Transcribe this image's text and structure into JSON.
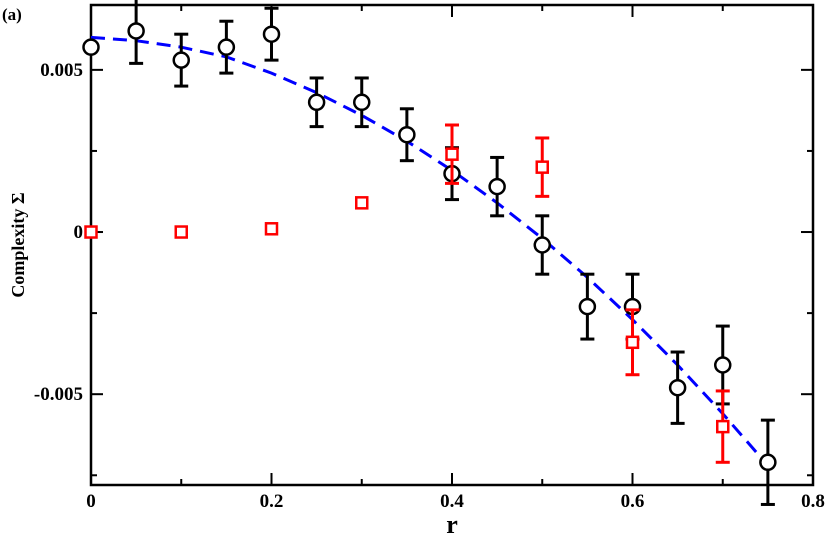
{
  "panel_label": "(a)",
  "chart_data": {
    "type": "scatter",
    "title": "",
    "xlabel": "r",
    "ylabel": "Complexity Σ",
    "xlim": [
      0,
      0.8
    ],
    "ylim": [
      -0.0078,
      0.007
    ],
    "x_ticks": [
      0,
      0.2,
      0.4,
      0.6,
      0.8
    ],
    "x_tick_labels": [
      "0",
      "0.2",
      "0.4",
      "0.6",
      "0.8"
    ],
    "y_ticks": [
      -0.005,
      0,
      0.005
    ],
    "y_tick_labels": [
      "-0.005",
      "0",
      "0.005"
    ],
    "grid": false,
    "legend": "none",
    "series": [
      {
        "marker": "circle",
        "color": "#000000",
        "points": [
          {
            "x": 0.0,
            "y": 0.0057,
            "err": 0.0
          },
          {
            "x": 0.05,
            "y": 0.0062,
            "err": 0.001
          },
          {
            "x": 0.1,
            "y": 0.0053,
            "err": 0.0008
          },
          {
            "x": 0.15,
            "y": 0.0057,
            "err": 0.0008
          },
          {
            "x": 0.2,
            "y": 0.0061,
            "err": 0.0008
          },
          {
            "x": 0.25,
            "y": 0.004,
            "err": 0.00075
          },
          {
            "x": 0.3,
            "y": 0.004,
            "err": 0.00075
          },
          {
            "x": 0.35,
            "y": 0.003,
            "err": 0.0008
          },
          {
            "x": 0.4,
            "y": 0.0018,
            "err": 0.0008
          },
          {
            "x": 0.45,
            "y": 0.0014,
            "err": 0.0009
          },
          {
            "x": 0.5,
            "y": -0.0004,
            "err": 0.0009
          },
          {
            "x": 0.55,
            "y": -0.0023,
            "err": 0.001
          },
          {
            "x": 0.6,
            "y": -0.0023,
            "err": 0.001
          },
          {
            "x": 0.65,
            "y": -0.0048,
            "err": 0.0011
          },
          {
            "x": 0.7,
            "y": -0.0041,
            "err": 0.0012
          },
          {
            "x": 0.75,
            "y": -0.0071,
            "err": 0.0013
          }
        ]
      },
      {
        "marker": "square",
        "color": "#ff0000",
        "points": [
          {
            "x": 0.0,
            "y": 0.0,
            "err": 0.0
          },
          {
            "x": 0.1,
            "y": 0.0,
            "err": 0.0
          },
          {
            "x": 0.2,
            "y": 0.0001,
            "err": 0.0
          },
          {
            "x": 0.3,
            "y": 0.0009,
            "err": 0.0
          },
          {
            "x": 0.4,
            "y": 0.0024,
            "err": 0.0009
          },
          {
            "x": 0.5,
            "y": 0.002,
            "err": 0.0009
          },
          {
            "x": 0.6,
            "y": -0.0034,
            "err": 0.001
          },
          {
            "x": 0.7,
            "y": -0.006,
            "err": 0.0011
          }
        ]
      },
      {
        "type": "line",
        "style": "dashed",
        "color": "#0000ff",
        "x": [
          0.0,
          0.05,
          0.1,
          0.15,
          0.2,
          0.25,
          0.3,
          0.35,
          0.4,
          0.45,
          0.5,
          0.55,
          0.6,
          0.65,
          0.7,
          0.75
        ],
        "y": [
          0.006,
          0.0059,
          0.0057,
          0.0054,
          0.0049,
          0.0043,
          0.0036,
          0.0028,
          0.0019,
          0.0009,
          -0.0002,
          -0.0014,
          -0.0027,
          -0.0041,
          -0.0056,
          -0.0072
        ]
      }
    ]
  }
}
